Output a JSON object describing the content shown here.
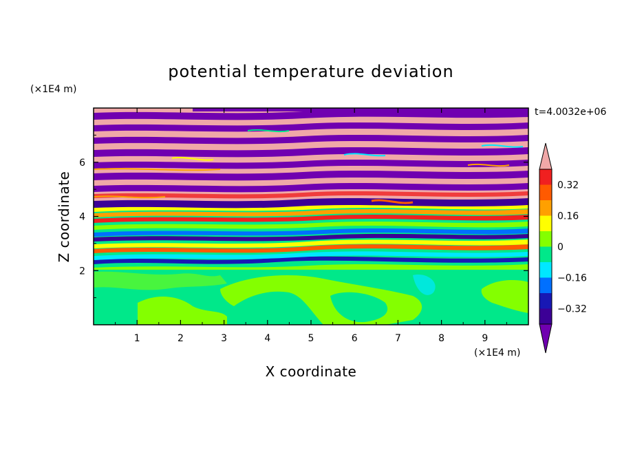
{
  "chart_data": {
    "type": "heatmap",
    "title": "potential temperature deviation",
    "xlabel": "X coordinate",
    "ylabel": "Z coordinate",
    "x_unit": "(×1E4 m)",
    "y_unit": "(×1E4 m)",
    "time_label": "t=4.0032e+06",
    "xlim": [
      0,
      10
    ],
    "ylim": [
      0,
      8
    ],
    "x_ticks": [
      1,
      2,
      3,
      4,
      5,
      6,
      7,
      8,
      9
    ],
    "y_ticks": [
      2,
      4,
      6
    ],
    "colorbar": {
      "labels": [
        "0.32",
        "0.16",
        "0",
        "−0.16",
        "−0.32"
      ],
      "label_values": [
        0.32,
        0.16,
        0,
        -0.16,
        -0.32
      ],
      "levels": [
        -0.4,
        -0.32,
        -0.24,
        -0.16,
        -0.08,
        0,
        0.08,
        0.16,
        0.24,
        0.32,
        0.4
      ],
      "colors": [
        "#3c0096",
        "#1818b4",
        "#0070ff",
        "#00e8ff",
        "#00e88a",
        "#84ff00",
        "#ffff00",
        "#ffa000",
        "#ff5a00",
        "#f02020"
      ],
      "under_color": "#7000b0",
      "over_color": "#f0a8a8"
    },
    "grid": false,
    "legend": "right colorbar",
    "regions": [
      {
        "z_range": [
          0,
          1.9
        ],
        "description_values": "mostly 0 to 0.08 with patches 0.08 to 0.16"
      },
      {
        "z_range": [
          1.9,
          4.2
        ],
        "description_values": "mixed -0.4 to 0.4, thin layered structures"
      },
      {
        "z_range": [
          4.2,
          8
        ],
        "description_values": "alternating layers of values above 0.4 and below -0.4"
      }
    ]
  }
}
